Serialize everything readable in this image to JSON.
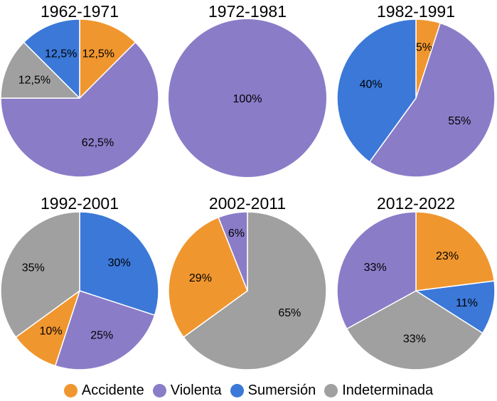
{
  "colors": {
    "Accidente": "#f0962e",
    "Violenta": "#8b7cc8",
    "Sumersión": "#3b78d8",
    "Indeterminada": "#a0a0a0"
  },
  "legend": [
    "Accidente",
    "Violenta",
    "Sumersión",
    "Indeterminada"
  ],
  "chart_data": [
    {
      "type": "pie",
      "title": "1962-1971",
      "slices": [
        {
          "category": "Accidente",
          "value": 12.5,
          "label": "12,5%"
        },
        {
          "category": "Violenta",
          "value": 62.5,
          "label": "62,5%"
        },
        {
          "category": "Indeterminada",
          "value": 12.5,
          "label": "12,5%"
        },
        {
          "category": "Sumersión",
          "value": 12.5,
          "label": "12,5%"
        }
      ]
    },
    {
      "type": "pie",
      "title": "1972-1981",
      "slices": [
        {
          "category": "Violenta",
          "value": 100,
          "label": "100%"
        }
      ]
    },
    {
      "type": "pie",
      "title": "1982-1991",
      "slices": [
        {
          "category": "Accidente",
          "value": 5,
          "label": "5%"
        },
        {
          "category": "Violenta",
          "value": 55,
          "label": "55%"
        },
        {
          "category": "Sumersión",
          "value": 40,
          "label": "40%"
        }
      ]
    },
    {
      "type": "pie",
      "title": "1992-2001",
      "slices": [
        {
          "category": "Sumersión",
          "value": 30,
          "label": "30%"
        },
        {
          "category": "Violenta",
          "value": 25,
          "label": "25%"
        },
        {
          "category": "Accidente",
          "value": 10,
          "label": "10%"
        },
        {
          "category": "Indeterminada",
          "value": 35,
          "label": "35%"
        }
      ]
    },
    {
      "type": "pie",
      "title": "2002-2011",
      "slices": [
        {
          "category": "Indeterminada",
          "value": 65,
          "label": "65%"
        },
        {
          "category": "Accidente",
          "value": 29,
          "label": "29%"
        },
        {
          "category": "Violenta",
          "value": 6,
          "label": "6%"
        }
      ]
    },
    {
      "type": "pie",
      "title": "2012-2022",
      "slices": [
        {
          "category": "Accidente",
          "value": 23,
          "label": "23%"
        },
        {
          "category": "Sumersión",
          "value": 11,
          "label": "11%"
        },
        {
          "category": "Indeterminada",
          "value": 33,
          "label": "33%"
        },
        {
          "category": "Violenta",
          "value": 33,
          "label": "33%"
        }
      ]
    }
  ]
}
